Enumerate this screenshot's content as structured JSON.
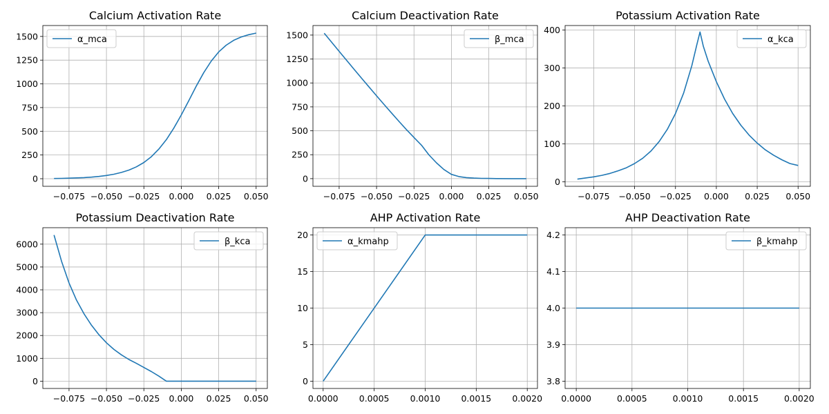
{
  "chart_data": [
    {
      "type": "line",
      "title": "Calcium Activation Rate",
      "xlabel": "",
      "ylabel": "",
      "xlim": [
        -0.0925,
        0.0575
      ],
      "ylim": [
        -80,
        1615
      ],
      "xticks": [
        -0.075,
        -0.05,
        -0.025,
        0.0,
        0.025,
        0.05
      ],
      "xtick_labels": [
        "−0.075",
        "−0.050",
        "−0.025",
        "0.000",
        "0.025",
        "0.050"
      ],
      "yticks": [
        0,
        250,
        500,
        750,
        1000,
        1250,
        1500
      ],
      "ytick_labels": [
        "0",
        "250",
        "500",
        "750",
        "1000",
        "1250",
        "1500"
      ],
      "grid": true,
      "legend_position": "upper left",
      "series": [
        {
          "name": "α_mca",
          "color": "#1f77b4",
          "x": [
            -0.085,
            -0.08,
            -0.075,
            -0.07,
            -0.065,
            -0.06,
            -0.055,
            -0.05,
            -0.045,
            -0.04,
            -0.035,
            -0.03,
            -0.025,
            -0.02,
            -0.015,
            -0.01,
            -0.005,
            0.0,
            0.005,
            0.01,
            0.015,
            0.02,
            0.025,
            0.03,
            0.035,
            0.04,
            0.045,
            0.05
          ],
          "y": [
            2,
            4,
            6,
            9,
            12,
            17,
            24,
            34,
            47,
            66,
            91,
            125,
            171,
            232,
            312,
            412,
            533,
            672,
            823,
            976,
            1118,
            1240,
            1337,
            1408,
            1459,
            1494,
            1518,
            1535
          ]
        }
      ]
    },
    {
      "type": "line",
      "title": "Calcium Deactivation Rate",
      "xlabel": "",
      "ylabel": "",
      "xlim": [
        -0.0925,
        0.0575
      ],
      "ylim": [
        -80,
        1600
      ],
      "xticks": [
        -0.075,
        -0.05,
        -0.025,
        0.0,
        0.025,
        0.05
      ],
      "xtick_labels": [
        "−0.075",
        "−0.050",
        "−0.025",
        "0.000",
        "0.025",
        "0.050"
      ],
      "yticks": [
        0,
        250,
        500,
        750,
        1000,
        1250,
        1500
      ],
      "ytick_labels": [
        "0",
        "250",
        "500",
        "750",
        "1000",
        "1250",
        "1500"
      ],
      "grid": true,
      "legend_position": "upper right",
      "series": [
        {
          "name": "β_mca",
          "color": "#1f77b4",
          "x": [
            -0.085,
            -0.08,
            -0.075,
            -0.07,
            -0.065,
            -0.06,
            -0.055,
            -0.05,
            -0.045,
            -0.04,
            -0.035,
            -0.03,
            -0.025,
            -0.02,
            -0.015,
            -0.01,
            -0.005,
            0.0,
            0.005,
            0.01,
            0.015,
            0.02,
            0.025,
            0.03,
            0.04,
            0.05
          ],
          "y": [
            1520,
            1425,
            1330,
            1236,
            1142,
            1049,
            957,
            865,
            775,
            686,
            598,
            512,
            430,
            350,
            248,
            165,
            95,
            45,
            22,
            11,
            6,
            3,
            2,
            1,
            0,
            0
          ]
        }
      ]
    },
    {
      "type": "line",
      "title": "Potassium Activation Rate",
      "xlabel": "",
      "ylabel": "",
      "xlim": [
        -0.0925,
        0.0575
      ],
      "ylim": [
        -12,
        412
      ],
      "xticks": [
        -0.075,
        -0.05,
        -0.025,
        0.0,
        0.025,
        0.05
      ],
      "xtick_labels": [
        "−0.075",
        "−0.050",
        "−0.025",
        "0.000",
        "0.025",
        "0.050"
      ],
      "yticks": [
        0,
        100,
        200,
        300,
        400
      ],
      "ytick_labels": [
        "0",
        "100",
        "200",
        "300",
        "400"
      ],
      "grid": true,
      "legend_position": "upper right",
      "series": [
        {
          "name": "α_kca",
          "color": "#1f77b4",
          "x": [
            -0.085,
            -0.08,
            -0.075,
            -0.07,
            -0.065,
            -0.06,
            -0.055,
            -0.05,
            -0.045,
            -0.04,
            -0.035,
            -0.03,
            -0.025,
            -0.02,
            -0.015,
            -0.012,
            -0.01,
            -0.008,
            -0.005,
            0.0,
            0.005,
            0.01,
            0.015,
            0.02,
            0.025,
            0.03,
            0.035,
            0.04,
            0.045,
            0.05
          ],
          "y": [
            7,
            10,
            13,
            17,
            22,
            29,
            37,
            48,
            62,
            81,
            106,
            138,
            180,
            234,
            306,
            360,
            395,
            358,
            318,
            264,
            218,
            180,
            149,
            123,
            102,
            84,
            70,
            58,
            48,
            43
          ]
        }
      ]
    },
    {
      "type": "line",
      "title": "Potassium Deactivation Rate",
      "xlabel": "",
      "ylabel": "",
      "xlim": [
        -0.0925,
        0.0575
      ],
      "ylim": [
        -320,
        6720
      ],
      "xticks": [
        -0.075,
        -0.05,
        -0.025,
        0.0,
        0.025,
        0.05
      ],
      "xtick_labels": [
        "−0.075",
        "−0.050",
        "−0.025",
        "0.000",
        "0.025",
        "0.050"
      ],
      "yticks": [
        0,
        1000,
        2000,
        3000,
        4000,
        5000,
        6000
      ],
      "ytick_labels": [
        "0",
        "1000",
        "2000",
        "3000",
        "4000",
        "5000",
        "6000"
      ],
      "grid": true,
      "legend_position": "upper right",
      "series": [
        {
          "name": "β_kca",
          "color": "#1f77b4",
          "x": [
            -0.085,
            -0.08,
            -0.075,
            -0.07,
            -0.065,
            -0.06,
            -0.055,
            -0.05,
            -0.045,
            -0.04,
            -0.035,
            -0.03,
            -0.025,
            -0.02,
            -0.015,
            -0.01,
            0.0,
            0.025,
            0.05
          ],
          "y": [
            6400,
            5250,
            4300,
            3550,
            2950,
            2450,
            2030,
            1680,
            1390,
            1150,
            950,
            780,
            600,
            420,
            220,
            0,
            0,
            0,
            0
          ]
        }
      ]
    },
    {
      "type": "line",
      "title": "AHP Activation Rate",
      "xlabel": "",
      "ylabel": "",
      "xlim": [
        -0.0001,
        0.0021
      ],
      "ylim": [
        -1,
        21
      ],
      "xticks": [
        0.0,
        0.0005,
        0.001,
        0.0015,
        0.002
      ],
      "xtick_labels": [
        "0.0000",
        "0.0005",
        "0.0010",
        "0.0015",
        "0.0020"
      ],
      "yticks": [
        0,
        5,
        10,
        15,
        20
      ],
      "ytick_labels": [
        "0",
        "5",
        "10",
        "15",
        "20"
      ],
      "grid": true,
      "legend_position": "upper left",
      "series": [
        {
          "name": "α_kmahp",
          "color": "#1f77b4",
          "x": [
            0.0,
            0.001,
            0.002
          ],
          "y": [
            0,
            20,
            20
          ]
        }
      ]
    },
    {
      "type": "line",
      "title": "AHP Deactivation Rate",
      "xlabel": "",
      "ylabel": "",
      "xlim": [
        -0.0001,
        0.0021
      ],
      "ylim": [
        3.78,
        4.22
      ],
      "xticks": [
        0.0,
        0.0005,
        0.001,
        0.0015,
        0.002
      ],
      "xtick_labels": [
        "0.0000",
        "0.0005",
        "0.0010",
        "0.0015",
        "0.0020"
      ],
      "yticks": [
        3.8,
        3.9,
        4.0,
        4.1,
        4.2
      ],
      "ytick_labels": [
        "3.8",
        "3.9",
        "4.0",
        "4.1",
        "4.2"
      ],
      "grid": true,
      "legend_position": "upper right",
      "series": [
        {
          "name": "β_kmahp",
          "color": "#1f77b4",
          "x": [
            0.0,
            0.002
          ],
          "y": [
            4.0,
            4.0
          ]
        }
      ]
    }
  ]
}
